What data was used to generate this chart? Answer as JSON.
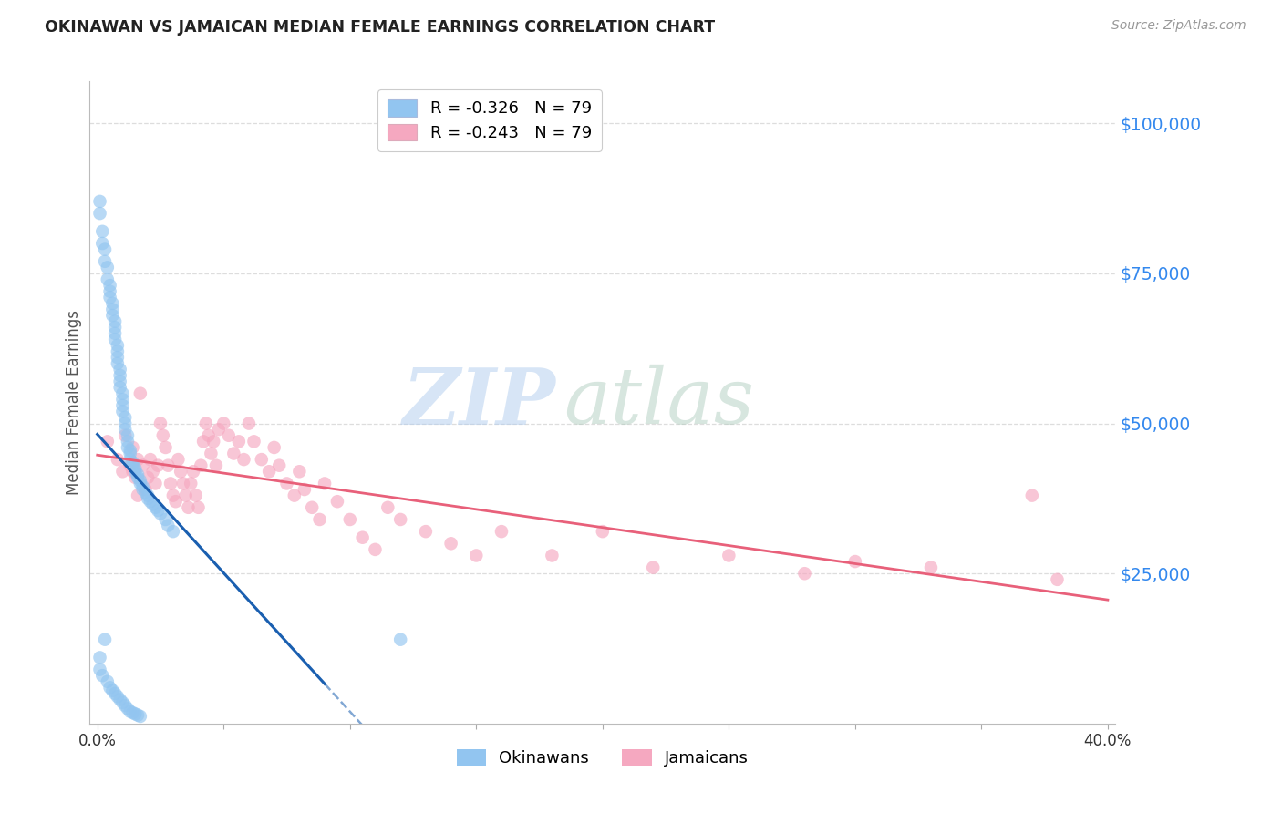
{
  "title": "OKINAWAN VS JAMAICAN MEDIAN FEMALE EARNINGS CORRELATION CHART",
  "source": "Source: ZipAtlas.com",
  "ylabel": "Median Female Earnings",
  "xlim": [
    -0.003,
    0.403
  ],
  "ylim": [
    0,
    107000
  ],
  "yticks": [
    25000,
    50000,
    75000,
    100000
  ],
  "ytick_labels": [
    "$25,000",
    "$50,000",
    "$75,000",
    "$100,000"
  ],
  "xtick_vals": [
    0.0,
    0.05,
    0.1,
    0.15,
    0.2,
    0.25,
    0.3,
    0.35,
    0.4
  ],
  "xtick_labels": [
    "0.0%",
    "",
    "",
    "",
    "",
    "",
    "",
    "",
    "40.0%"
  ],
  "okinawan_color": "#92c5f0",
  "jamaican_color": "#f5a8c0",
  "okinawan_line_color": "#1a5fb0",
  "jamaican_line_color": "#e8607a",
  "R_okinawan": -0.326,
  "R_jamaican": -0.243,
  "N_okinawan": 79,
  "N_jamaican": 79,
  "title_color": "#222222",
  "axis_label_color": "#555555",
  "ytick_color": "#3388ee",
  "source_color": "#999999",
  "grid_color": "#dddddd",
  "okinawan_x": [
    0.001,
    0.001,
    0.002,
    0.002,
    0.003,
    0.003,
    0.004,
    0.004,
    0.005,
    0.005,
    0.005,
    0.006,
    0.006,
    0.006,
    0.007,
    0.007,
    0.007,
    0.007,
    0.008,
    0.008,
    0.008,
    0.008,
    0.009,
    0.009,
    0.009,
    0.009,
    0.01,
    0.01,
    0.01,
    0.01,
    0.011,
    0.011,
    0.011,
    0.012,
    0.012,
    0.012,
    0.013,
    0.013,
    0.013,
    0.014,
    0.014,
    0.015,
    0.015,
    0.016,
    0.016,
    0.017,
    0.017,
    0.018,
    0.018,
    0.019,
    0.02,
    0.02,
    0.021,
    0.022,
    0.023,
    0.024,
    0.025,
    0.027,
    0.028,
    0.03,
    0.001,
    0.001,
    0.002,
    0.003,
    0.004,
    0.005,
    0.006,
    0.007,
    0.008,
    0.009,
    0.01,
    0.011,
    0.012,
    0.013,
    0.014,
    0.015,
    0.016,
    0.017,
    0.12
  ],
  "okinawan_y": [
    87000,
    85000,
    82000,
    80000,
    79000,
    77000,
    76000,
    74000,
    73000,
    72000,
    71000,
    70000,
    69000,
    68000,
    67000,
    66000,
    65000,
    64000,
    63000,
    62000,
    61000,
    60000,
    59000,
    58000,
    57000,
    56000,
    55000,
    54000,
    53000,
    52000,
    51000,
    50000,
    49000,
    48000,
    47000,
    46000,
    45500,
    45000,
    44000,
    43500,
    43000,
    42500,
    42000,
    41500,
    41000,
    40500,
    40000,
    39500,
    39000,
    38500,
    38000,
    37500,
    37000,
    36500,
    36000,
    35500,
    35000,
    34000,
    33000,
    32000,
    11000,
    9000,
    8000,
    14000,
    7000,
    6000,
    5500,
    5000,
    4500,
    4000,
    3500,
    3000,
    2500,
    2000,
    1800,
    1600,
    1400,
    1200,
    14000
  ],
  "jamaican_x": [
    0.004,
    0.008,
    0.01,
    0.011,
    0.013,
    0.014,
    0.015,
    0.016,
    0.017,
    0.018,
    0.019,
    0.02,
    0.021,
    0.022,
    0.023,
    0.024,
    0.025,
    0.026,
    0.027,
    0.028,
    0.029,
    0.03,
    0.031,
    0.032,
    0.033,
    0.034,
    0.035,
    0.036,
    0.037,
    0.038,
    0.039,
    0.04,
    0.041,
    0.042,
    0.043,
    0.044,
    0.045,
    0.046,
    0.047,
    0.048,
    0.05,
    0.052,
    0.054,
    0.056,
    0.058,
    0.06,
    0.062,
    0.065,
    0.068,
    0.07,
    0.072,
    0.075,
    0.078,
    0.08,
    0.082,
    0.085,
    0.088,
    0.09,
    0.095,
    0.1,
    0.105,
    0.11,
    0.115,
    0.12,
    0.13,
    0.14,
    0.15,
    0.16,
    0.18,
    0.2,
    0.22,
    0.25,
    0.28,
    0.3,
    0.33,
    0.37,
    0.38,
    0.014,
    0.016
  ],
  "jamaican_y": [
    47000,
    44000,
    42000,
    48000,
    43000,
    46000,
    41000,
    44000,
    55000,
    43000,
    39000,
    41000,
    44000,
    42000,
    40000,
    43000,
    50000,
    48000,
    46000,
    43000,
    40000,
    38000,
    37000,
    44000,
    42000,
    40000,
    38000,
    36000,
    40000,
    42000,
    38000,
    36000,
    43000,
    47000,
    50000,
    48000,
    45000,
    47000,
    43000,
    49000,
    50000,
    48000,
    45000,
    47000,
    44000,
    50000,
    47000,
    44000,
    42000,
    46000,
    43000,
    40000,
    38000,
    42000,
    39000,
    36000,
    34000,
    40000,
    37000,
    34000,
    31000,
    29000,
    36000,
    34000,
    32000,
    30000,
    28000,
    32000,
    28000,
    32000,
    26000,
    28000,
    25000,
    27000,
    26000,
    38000,
    24000,
    42000,
    38000
  ]
}
